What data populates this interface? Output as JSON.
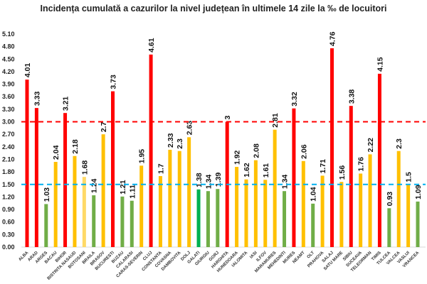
{
  "chart_data": {
    "type": "bar",
    "title": "Incidența cumulată a cazurilor la nivel județean în ultimele 14 zile la ‰ de locuitori",
    "xlabel": "",
    "ylabel": "",
    "ylim": [
      0,
      5.1
    ],
    "yticks": [
      "0.00",
      "0.30",
      "0.60",
      "0.90",
      "1.20",
      "1.50",
      "1.80",
      "2.10",
      "2.40",
      "2.70",
      "3.00",
      "3.30",
      "3.60",
      "3.90",
      "4.20",
      "4.50",
      "4.80",
      "5.10"
    ],
    "grid": false,
    "legend": "none",
    "categories": [
      "ALBA",
      "ARAD",
      "ARGES",
      "BACAU",
      "BIHOR",
      "BISTRITA NASAUD",
      "BOTOSANI",
      "BRAILA",
      "BRASOV",
      "BUCURESTI",
      "BUZAU",
      "CALARASI",
      "CARAS-SEVERIN",
      "CLUJ",
      "CONSTANTA",
      "COVASNA",
      "DAMBOVITA",
      "DOLJ",
      "GALATI",
      "GIURGIU",
      "GORJ",
      "HARGHITA",
      "HUNEDOARA",
      "IALOMITA",
      "IASI",
      "ILFOV",
      "MARAMURES",
      "MEHEDINTI",
      "MURES",
      "NEAMT",
      "OLT",
      "PRAHOVA",
      "SALAJ",
      "SATU MARE",
      "SIBIU",
      "SUCEAVA",
      "TELEORMAN",
      "TIMIS",
      "TULCEA",
      "VALCEA",
      "VASLUI",
      "VRANCEA"
    ],
    "values": [
      4.01,
      3.33,
      1.03,
      2.04,
      3.21,
      2.18,
      1.68,
      1.24,
      2.7,
      3.73,
      1.21,
      1.11,
      1.95,
      4.61,
      1.7,
      2.33,
      2.3,
      2.63,
      1.38,
      1.34,
      1.39,
      3,
      1.92,
      1.62,
      2.08,
      1.61,
      2.81,
      1.34,
      3.32,
      2.06,
      1.04,
      1.71,
      4.76,
      1.56,
      3.38,
      1.76,
      2.22,
      4.15,
      0.93,
      2.3,
      1.5,
      1.09
    ],
    "value_labels": [
      "4.01",
      "3.33",
      "1.03",
      "2.04",
      "3.21",
      "2.18",
      "1.68",
      "1.24",
      "2.7",
      "3.73",
      "1.21",
      "1.11",
      "1.95",
      "4.61",
      "1.7",
      "2.33",
      "2.3",
      "2.63",
      "1.38",
      "1.34",
      "1.39",
      "3",
      "1.92",
      "1.62",
      "2.08",
      "1.61",
      "2.81",
      "1.34",
      "3.32",
      "2.06",
      "1.04",
      "1.71",
      "4.76",
      "1.56",
      "3.38",
      "1.76",
      "2.22",
      "4.15",
      "0.93",
      "2.3",
      "1.5",
      "1.09"
    ],
    "bar_colors": [
      "#ff0000",
      "#ff0000",
      "#70ad47",
      "#ffc000",
      "#ff0000",
      "#ffc000",
      "#ffd966",
      "#70ad47",
      "#ffc000",
      "#ff0000",
      "#70ad47",
      "#70ad47",
      "#ffc000",
      "#ff0000",
      "#ffc000",
      "#ffc000",
      "#ffc000",
      "#ffc000",
      "#00b050",
      "#70ad47",
      "#70ad47",
      "#ff0000",
      "#ffc000",
      "#ffc000",
      "#ffc000",
      "#ffc000",
      "#ffc000",
      "#70ad47",
      "#ff0000",
      "#ffc000",
      "#70ad47",
      "#ffc000",
      "#ff0000",
      "#ffc000",
      "#ff0000",
      "#ffc000",
      "#ffc000",
      "#ff0000",
      "#70ad47",
      "#ffc000",
      "#ffc000",
      "#70ad47"
    ],
    "reference_lines": [
      {
        "value": 3.0,
        "color": "#ff0000",
        "style": "dashed"
      },
      {
        "value": 1.5,
        "color": "#00b0f0",
        "style": "dashed"
      }
    ]
  }
}
